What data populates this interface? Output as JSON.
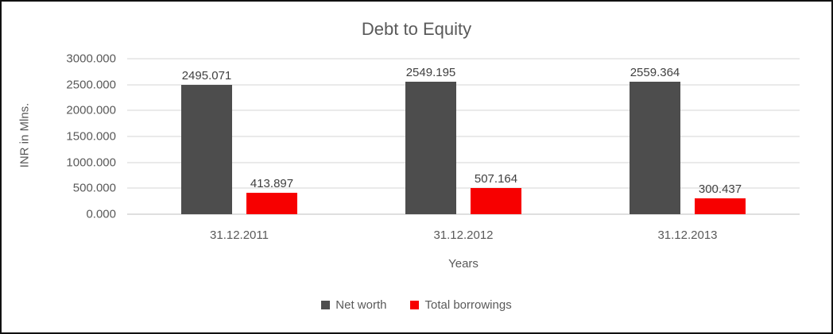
{
  "chart_data": {
    "type": "bar",
    "title": "Debt to Equity",
    "xlabel": "Years",
    "ylabel": "INR in Mlns.",
    "categories": [
      "31.12.2011",
      "31.12.2012",
      "31.12.2013"
    ],
    "series": [
      {
        "name": "Net worth",
        "color": "#4d4d4d",
        "values": [
          2495.071,
          2549.195,
          2559.364
        ],
        "labels": [
          "2495.071",
          "2549.195",
          "2559.364"
        ]
      },
      {
        "name": "Total borrowings",
        "color": "#f70000",
        "values": [
          413.897,
          507.164,
          300.437
        ],
        "labels": [
          "413.897",
          "507.164",
          "300.437"
        ]
      }
    ],
    "ylim": [
      0,
      3000
    ],
    "yticks": [
      "0.000",
      "500.000",
      "1000.000",
      "1500.000",
      "2000.000",
      "2500.000",
      "3000.000"
    ],
    "grid": "horizontal",
    "legend_position": "bottom"
  }
}
